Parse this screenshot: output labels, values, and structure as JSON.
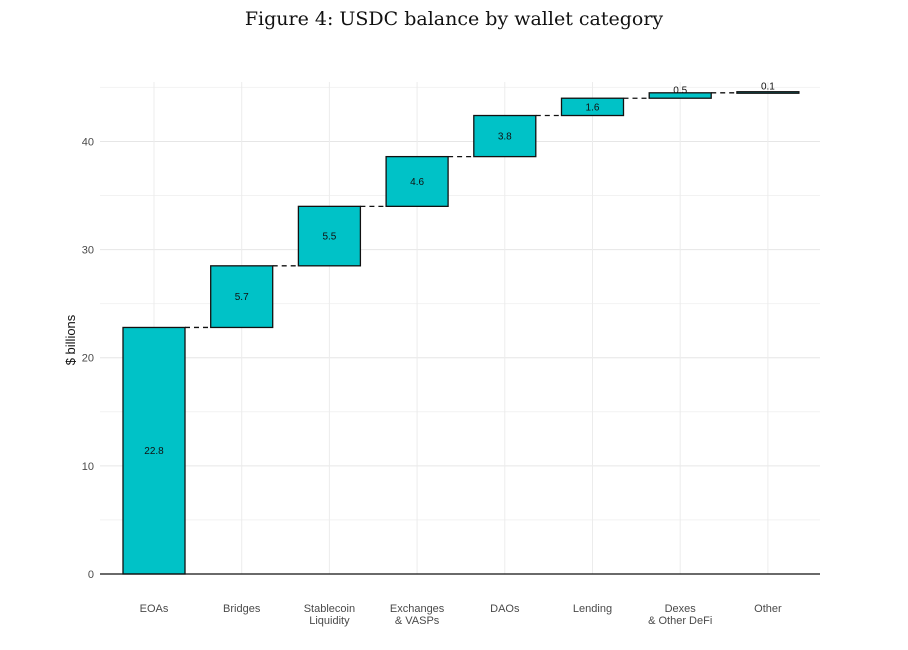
{
  "chart_data": {
    "type": "bar",
    "subtype": "waterfall",
    "title": "Figure 4: USDC balance by wallet category",
    "xlabel": "",
    "ylabel": "$ billions",
    "categories": [
      "EOAs",
      "Bridges",
      "Stablecoin\nLiquidity",
      "Exchanges\n& VASPs",
      "DAOs",
      "Lending",
      "Dexes\n& Other DeFi",
      "Other"
    ],
    "values": [
      22.8,
      5.7,
      5.5,
      4.6,
      3.8,
      1.6,
      0.5,
      0.1
    ],
    "data_labels": [
      "22.8",
      "5.7",
      "5.5",
      "4.6",
      "3.8",
      "1.6",
      "0.5",
      "0.1"
    ],
    "ylim": [
      0,
      45.5
    ],
    "yticks": [
      0,
      10,
      20,
      30,
      40
    ],
    "ytick_labels": [
      "0",
      "10",
      "20",
      "30",
      "40"
    ],
    "grid": true,
    "bar_color": "#00C2C7",
    "bar_edge_color": "#111111",
    "connector_style": "dashed"
  }
}
